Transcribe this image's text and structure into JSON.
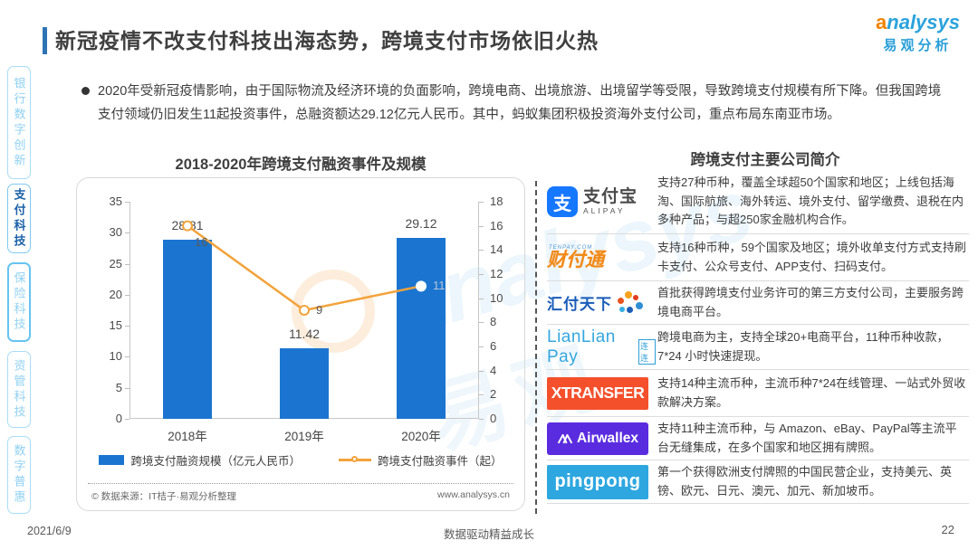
{
  "header": {
    "title": "新冠疫情不改支付科技出海态势，跨境支付市场依旧火热",
    "logo": {
      "brand_first": "a",
      "brand_rest": "nalysys",
      "brand_cn": "易观分析"
    }
  },
  "watermark": {
    "brand": "analysys",
    "brand_cn": "易观"
  },
  "sidebar": {
    "items": [
      {
        "label": "银行数字创新",
        "active": false
      },
      {
        "label": "支付科技",
        "active": true
      },
      {
        "label": "保险科技",
        "active": false
      },
      {
        "label": "资管科技",
        "active": false
      },
      {
        "label": "数字普惠",
        "active": false
      }
    ]
  },
  "intro": {
    "bullet": "2020年受新冠疫情影响，由于国际物流及经济环境的负面影响，跨境电商、出境旅游、出境留学等受限，导致跨境支付规模有所下降。但我国跨境支付领域仍旧发生11起投资事件，总融资额达29.12亿元人民币。其中，蚂蚁集团积极投资海外支付公司，重点布局东南亚市场。"
  },
  "chart_data": {
    "type": "bar+line",
    "title": "2018-2020年跨境支付融资事件及规模",
    "categories": [
      "2018年",
      "2019年",
      "2020年"
    ],
    "series": [
      {
        "name": "跨境支付融资规模（亿元人民币）",
        "type": "bar",
        "axis": "left",
        "color": "#1b75d0",
        "values": [
          28.81,
          11.42,
          29.12
        ]
      },
      {
        "name": "跨境支付融资事件（起）",
        "type": "line",
        "axis": "right",
        "color": "#f2a33c",
        "values": [
          16,
          9,
          11
        ]
      }
    ],
    "left_axis": {
      "min": 0,
      "max": 35,
      "ticks": [
        0,
        5,
        10,
        15,
        20,
        25,
        30,
        35
      ]
    },
    "right_axis": {
      "min": 0,
      "max": 18,
      "ticks": [
        0,
        2,
        4,
        6,
        8,
        10,
        12,
        14,
        16,
        18
      ]
    },
    "legend_position": "bottom",
    "grid": false,
    "source": "© 数据来源：IT桔子·易观分析整理",
    "source_url": "www.analysys.cn"
  },
  "companies": {
    "title": "跨境支付主要公司简介",
    "rows": [
      {
        "logo": "支付宝",
        "logo_icon": "支",
        "logo_sub": "ALIPAY",
        "desc": "支持27种币种，覆盖全球超50个国家和地区；上线包括海淘、国际航旅、海外转运、境外支付、留学缴费、退税在内多种产品；与超250家金融机构合作。"
      },
      {
        "logo": "财付通",
        "logo_sub": "TENPAY.COM",
        "desc": "支持16种币种，59个国家及地区；境外收单支付方式支持刷卡支付、公众号支付、APP支付、扫码支付。"
      },
      {
        "logo": "汇付天下",
        "desc": "首批获得跨境支付业务许可的第三方支付公司，主要服务跨境电商平台。"
      },
      {
        "logo": "LianLian Pay",
        "logo_sub": "连连",
        "desc": "跨境电商为主，支持全球20+电商平台，11种币种收款，7*24 小时快速提现。"
      },
      {
        "logo": "XTRANSFER",
        "desc": "支持14种主流币种，主流币种7*24在线管理、一站式外贸收款解决方案。"
      },
      {
        "logo": "Airwallex",
        "desc": "支持11种主流币种，与 Amazon、eBay、PayPal等主流平台无缝集成，在多个国家和地区拥有牌照。"
      },
      {
        "logo": "pingpong",
        "desc": "第一个获得欧洲支付牌照的中国民营企业，支持美元、英镑、欧元、日元、澳元、加元、新加坡币。"
      }
    ]
  },
  "footer": {
    "date": "2021/6/9",
    "slogan": "数据驱动精益成长",
    "page": "22"
  }
}
